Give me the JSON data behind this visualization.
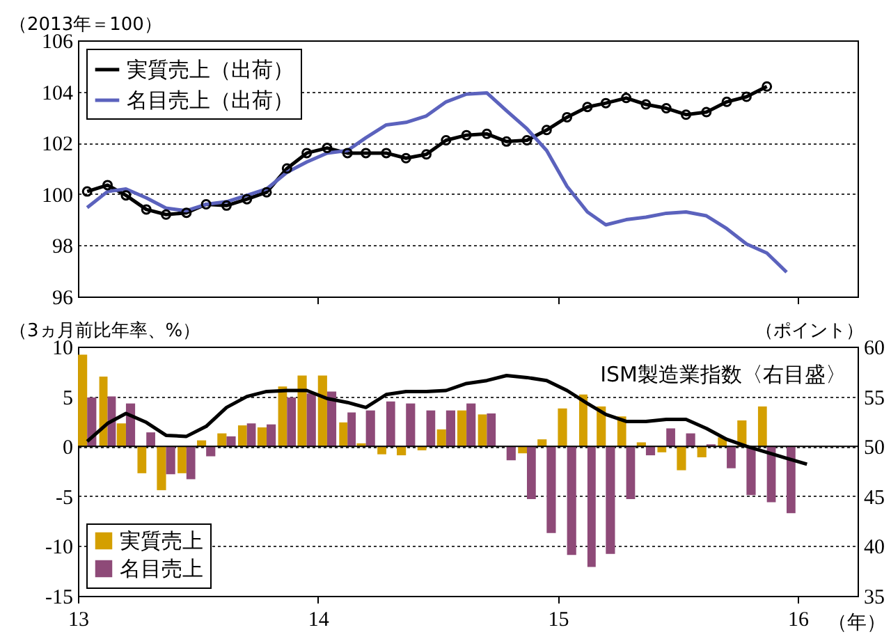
{
  "chart_data": [
    {
      "type": "line",
      "ylabel": "（2013年＝100）",
      "x": [
        "2013-01-15",
        "2013-02-15",
        "2013-03-15",
        "2013-04-15",
        "2013-05-15",
        "2013-06-15",
        "2013-07-15",
        "2013-08-15",
        "2013-09-15",
        "2013-10-15",
        "2013-11-15",
        "2013-12-15",
        "2014-01-15",
        "2014-02-15",
        "2014-03-15",
        "2014-04-15",
        "2014-05-15",
        "2014-06-15",
        "2014-07-15",
        "2014-08-15",
        "2014-09-15",
        "2014-10-15",
        "2014-11-15",
        "2014-12-15",
        "2015-01-15",
        "2015-02-15",
        "2015-03-15",
        "2015-04-15",
        "2015-05-15",
        "2015-06-15",
        "2015-07-15",
        "2015-08-15",
        "2015-09-15",
        "2015-10-15",
        "2015-11-15",
        "2015-12-15"
      ],
      "xlim": [
        "2013-01",
        "2016-04"
      ],
      "xticks": [
        {
          "value": "2014-01",
          "label": null
        },
        {
          "value": "2015-01",
          "label": null
        },
        {
          "value": "2016-01",
          "label": null
        }
      ],
      "tick_labels": "y",
      "ylim": [
        96,
        106
      ],
      "yticks": [
        96,
        98,
        100,
        102,
        104,
        106
      ],
      "grid": "y",
      "legend": "top left",
      "marker": "circle",
      "line_style": "solid",
      "series": [
        {
          "name": "実質売上（出荷）",
          "color": "#000000",
          "values": [
            100.1,
            100.35,
            99.95,
            99.4,
            99.2,
            99.27,
            99.6,
            99.55,
            99.8,
            100.07,
            101.0,
            101.6,
            101.8,
            101.6,
            101.6,
            101.6,
            101.4,
            101.55,
            102.1,
            102.3,
            102.35,
            102.05,
            102.1,
            102.5,
            103.0,
            103.4,
            103.55,
            103.75,
            103.5,
            103.35,
            103.1,
            103.2,
            103.6,
            103.8,
            104.2,
            null
          ]
        },
        {
          "name": "名目売上（出荷）",
          "color": "#5b62bd",
          "marker": "none",
          "values": [
            99.47,
            100.1,
            100.2,
            99.85,
            99.45,
            99.35,
            99.6,
            99.7,
            99.95,
            100.2,
            100.85,
            101.25,
            101.6,
            101.7,
            102.2,
            102.7,
            102.8,
            103.05,
            103.6,
            103.9,
            103.95,
            103.25,
            102.55,
            101.7,
            100.3,
            99.3,
            98.8,
            99.0,
            99.1,
            99.25,
            99.3,
            99.15,
            98.65,
            98.05,
            97.7,
            96.95
          ]
        }
      ]
    },
    {
      "type": "bar",
      "ylabel": "（3ヵ月前比年率、%）",
      "y2label": "（ポイント）",
      "xlabel": "（年）",
      "x": [
        "2013-01-15",
        "2013-02-15",
        "2013-03-15",
        "2013-04-15",
        "2013-05-15",
        "2013-06-15",
        "2013-07-15",
        "2013-08-15",
        "2013-09-15",
        "2013-10-15",
        "2013-11-15",
        "2013-12-15",
        "2014-01-15",
        "2014-02-15",
        "2014-03-15",
        "2014-04-15",
        "2014-05-15",
        "2014-06-15",
        "2014-07-15",
        "2014-08-15",
        "2014-09-15",
        "2014-10-15",
        "2014-11-15",
        "2014-12-15",
        "2015-01-15",
        "2015-02-15",
        "2015-03-15",
        "2015-04-15",
        "2015-05-15",
        "2015-06-15",
        "2015-07-15",
        "2015-08-15",
        "2015-09-15",
        "2015-10-15",
        "2015-11-15",
        "2015-12-15"
      ],
      "xlim": [
        "2013-01",
        "2016-04"
      ],
      "xticks": [
        {
          "value": "2013-01",
          "label": "13"
        },
        {
          "value": "2014-01",
          "label": "14"
        },
        {
          "value": "2015-01",
          "label": "15"
        },
        {
          "value": "2016-01",
          "label": "16"
        }
      ],
      "ylim": [
        -15,
        10
      ],
      "yticks": [
        -15,
        -10,
        -5,
        0,
        5,
        10
      ],
      "y2lim": [
        35,
        60
      ],
      "y2ticks": [
        35,
        40,
        45,
        50,
        55,
        60
      ],
      "grid": "y",
      "legend": "bottom left",
      "ref_lines": [
        {
          "axis": "y",
          "value": 0,
          "color": "#000000"
        }
      ],
      "series": [
        {
          "name": "実質売上",
          "color": "#d49f00",
          "values": [
            9.2,
            7.0,
            2.3,
            -2.7,
            -4.4,
            -2.7,
            0.6,
            1.3,
            2.1,
            1.9,
            6.0,
            7.1,
            7.1,
            2.4,
            0.3,
            -0.8,
            -0.9,
            -0.4,
            1.7,
            3.6,
            3.2,
            0.0,
            -0.7,
            0.7,
            3.8,
            5.2,
            4.0,
            3.0,
            0.4,
            -0.6,
            -2.4,
            -1.1,
            0.9,
            2.6,
            4.0,
            null
          ]
        },
        {
          "name": "名目売上",
          "color": "#8e4a78",
          "values": [
            4.9,
            5.0,
            4.3,
            1.4,
            -2.8,
            -3.3,
            -1.0,
            1.0,
            2.3,
            2.2,
            4.9,
            5.3,
            5.5,
            3.4,
            3.6,
            4.5,
            4.3,
            3.6,
            3.6,
            4.3,
            3.3,
            -1.4,
            -5.3,
            -8.7,
            -10.9,
            -12.1,
            -10.8,
            -5.3,
            -0.9,
            1.8,
            1.3,
            0.2,
            -2.2,
            -4.9,
            -5.6,
            -6.7
          ]
        },
        {
          "name": "ISM製造業指数〈右目盛〉",
          "type": "line",
          "axis": "y2",
          "color": "#000000",
          "x": [
            "2013-01-15",
            "2013-02-15",
            "2013-03-15",
            "2013-04-15",
            "2013-05-15",
            "2013-06-15",
            "2013-07-15",
            "2013-08-15",
            "2013-09-15",
            "2013-10-15",
            "2013-11-15",
            "2013-12-15",
            "2014-01-15",
            "2014-02-15",
            "2014-03-15",
            "2014-04-15",
            "2014-05-15",
            "2014-06-15",
            "2014-07-15",
            "2014-08-15",
            "2014-09-15",
            "2014-10-15",
            "2014-11-15",
            "2014-12-15",
            "2015-01-15",
            "2015-02-15",
            "2015-03-15",
            "2015-04-15",
            "2015-05-15",
            "2015-06-15",
            "2015-07-15",
            "2015-08-15",
            "2015-09-15",
            "2015-10-15",
            "2015-11-15",
            "2015-12-15",
            "2016-01-15"
          ],
          "values": [
            50.5,
            52.3,
            53.3,
            52.4,
            51.1,
            51.0,
            52.0,
            53.9,
            55.0,
            55.5,
            55.6,
            55.6,
            54.8,
            54.4,
            53.9,
            55.2,
            55.5,
            55.5,
            55.6,
            56.3,
            56.6,
            57.1,
            56.9,
            56.6,
            55.6,
            54.3,
            53.2,
            52.5,
            52.5,
            52.7,
            52.7,
            51.8,
            50.7,
            50.0,
            49.4,
            48.8,
            48.2
          ]
        }
      ]
    }
  ]
}
